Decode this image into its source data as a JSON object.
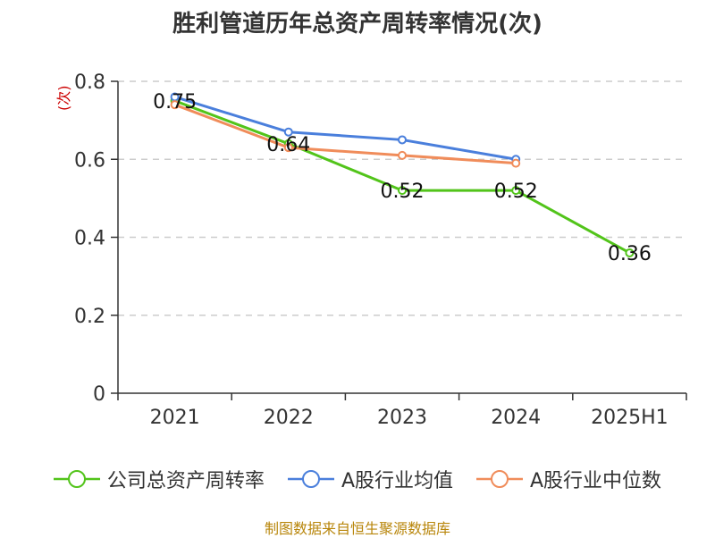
{
  "chart_data": {
    "type": "line",
    "title": "胜利管道历年总资产周转率情况(次)",
    "ylabel": "(次)",
    "categories": [
      "2021",
      "2022",
      "2023",
      "2024",
      "2025H1"
    ],
    "ylim": [
      0,
      0.8
    ],
    "yticks": [
      0,
      0.2,
      0.4,
      0.6,
      0.8
    ],
    "ytick_labels": [
      "0",
      "0.2",
      "0.4",
      "0.6",
      "0.8"
    ],
    "grid": true,
    "legend_position": "bottom",
    "series": [
      {
        "name": "公司总资产周转率",
        "values": [
          0.75,
          0.64,
          0.52,
          0.52,
          0.36
        ],
        "labels": [
          "0.75",
          "0.64",
          "0.52",
          "0.52",
          "0.36"
        ],
        "color": "#52c41a"
      },
      {
        "name": "A股行业均值",
        "values": [
          0.76,
          0.67,
          0.65,
          0.6,
          null
        ],
        "color": "#4a7fdc"
      },
      {
        "name": "A股行业中位数",
        "values": [
          0.74,
          0.63,
          0.61,
          0.59,
          null
        ],
        "color": "#f08c5a"
      }
    ]
  },
  "source": "制图数据来自恒生聚源数据库"
}
